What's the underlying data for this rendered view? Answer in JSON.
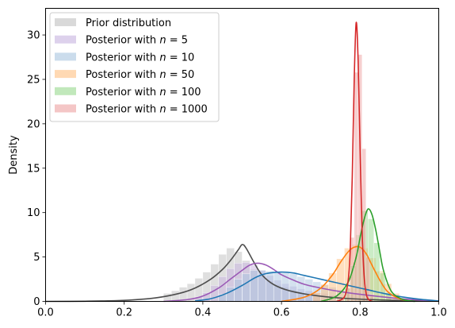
{
  "chart_data": {
    "type": "area",
    "title": "",
    "xlabel": "",
    "ylabel": "Density",
    "xlim": [
      0.0,
      1.0
    ],
    "ylim": [
      0,
      33
    ],
    "x_ticks": [
      "0.0",
      "0.2",
      "0.4",
      "0.6",
      "0.8",
      "1.0"
    ],
    "y_ticks": [
      "0",
      "5",
      "10",
      "15",
      "20",
      "25",
      "30"
    ],
    "legend_position": "upper-left",
    "grid": false,
    "series": [
      {
        "name": "Prior distribution",
        "line_color": "#4d4d4d",
        "hist_color": "#bfbfbf",
        "curve": {
          "x": [
            0.0,
            0.1,
            0.2,
            0.28,
            0.34,
            0.38,
            0.42,
            0.45,
            0.47,
            0.49,
            0.5,
            0.51,
            0.53,
            0.55,
            0.58,
            0.62,
            0.68,
            0.75,
            0.85,
            0.95,
            1.0
          ],
          "y": [
            0.0,
            0.02,
            0.12,
            0.4,
            0.9,
            1.5,
            2.5,
            3.6,
            4.6,
            5.8,
            6.4,
            6.0,
            4.4,
            3.0,
            1.9,
            1.2,
            0.7,
            0.38,
            0.16,
            0.06,
            0.02
          ]
        },
        "histogram": {
          "bin_start": 0.3,
          "bin_width": 0.02,
          "heights": [
            0.9,
            1.2,
            1.6,
            2.0,
            2.6,
            3.3,
            4.2,
            5.3,
            6.0,
            5.6,
            4.6,
            3.6,
            2.9,
            2.3,
            1.9,
            1.6,
            1.3,
            1.0,
            0.8,
            0.6
          ]
        }
      },
      {
        "name": "Posterior with n = 5",
        "name_parts": [
          "Posterior with ",
          "n",
          " = 5"
        ],
        "line_color": "#9b59b6",
        "hist_color": "#c7b3e0",
        "curve": {
          "x": [
            0.3,
            0.36,
            0.4,
            0.44,
            0.47,
            0.5,
            0.52,
            0.54,
            0.56,
            0.58,
            0.6,
            0.63,
            0.66,
            0.7,
            0.75,
            0.8,
            0.88,
            0.95,
            1.0
          ],
          "y": [
            0.0,
            0.2,
            0.6,
            1.5,
            2.5,
            3.5,
            4.1,
            4.3,
            4.1,
            3.6,
            3.0,
            2.4,
            1.9,
            1.5,
            1.1,
            0.8,
            0.4,
            0.15,
            0.05
          ]
        },
        "histogram": {
          "bin_start": 0.38,
          "bin_width": 0.02,
          "heights": [
            0.5,
            1.0,
            1.8,
            2.8,
            3.7,
            4.3,
            4.4,
            4.1,
            3.5,
            2.9,
            2.4,
            2.0,
            1.7,
            1.4,
            1.2,
            1.0,
            0.9,
            0.7,
            0.5,
            0.4,
            0.3
          ]
        }
      },
      {
        "name": "Posterior with n = 10",
        "name_parts": [
          "Posterior with ",
          "n",
          " = 10"
        ],
        "line_color": "#1f77b4",
        "hist_color": "#a9c4e0",
        "curve": {
          "x": [
            0.38,
            0.42,
            0.46,
            0.5,
            0.53,
            0.55,
            0.57,
            0.6,
            0.63,
            0.66,
            0.7,
            0.74,
            0.78,
            0.82,
            0.86,
            0.9,
            0.95,
            1.0
          ],
          "y": [
            0.05,
            0.3,
            0.9,
            1.8,
            2.6,
            3.0,
            3.2,
            3.3,
            3.2,
            2.9,
            2.5,
            2.1,
            1.7,
            1.3,
            0.9,
            0.55,
            0.25,
            0.05
          ]
        },
        "histogram": {
          "bin_start": 0.44,
          "bin_width": 0.02,
          "heights": [
            0.8,
            1.6,
            2.5,
            3.1,
            3.5,
            3.5,
            3.4,
            3.3,
            3.2,
            3.1,
            2.8,
            2.5,
            2.2,
            1.9,
            1.6,
            1.3,
            1.0,
            0.8,
            0.6,
            0.4
          ]
        }
      },
      {
        "name": "Posterior with n = 50",
        "name_parts": [
          "Posterior with ",
          "n",
          " = 50"
        ],
        "line_color": "#ff7f0e",
        "hist_color": "#ffc080",
        "curve": {
          "x": [
            0.6,
            0.66,
            0.7,
            0.73,
            0.75,
            0.77,
            0.785,
            0.8,
            0.815,
            0.83,
            0.85,
            0.87,
            0.9,
            0.93
          ],
          "y": [
            0.0,
            0.5,
            1.5,
            3.0,
            4.4,
            5.6,
            6.1,
            6.1,
            5.4,
            4.1,
            2.4,
            1.1,
            0.3,
            0.0
          ]
        },
        "histogram": {
          "bin_start": 0.68,
          "bin_width": 0.02,
          "heights": [
            1.0,
            1.9,
            3.2,
            4.8,
            6.0,
            6.4,
            6.0,
            4.9,
            3.4,
            2.0,
            0.9,
            0.3
          ]
        }
      },
      {
        "name": "Posterior with n = 100",
        "name_parts": [
          "Posterior with ",
          "n",
          " = 100"
        ],
        "line_color": "#2ca02c",
        "hist_color": "#98d98e",
        "curve": {
          "x": [
            0.7,
            0.74,
            0.77,
            0.79,
            0.8,
            0.81,
            0.82,
            0.83,
            0.84,
            0.85,
            0.86,
            0.88,
            0.91,
            0.94
          ],
          "y": [
            0.0,
            0.6,
            2.2,
            5.0,
            7.2,
            9.2,
            10.4,
            9.8,
            8.0,
            5.6,
            3.4,
            1.1,
            0.2,
            0.0
          ]
        },
        "histogram": {
          "bin_start": 0.76,
          "bin_width": 0.015,
          "heights": [
            1.5,
            4.0,
            7.5,
            10.2,
            9.3,
            6.6,
            3.2,
            1.0
          ]
        }
      },
      {
        "name": "Posterior with n = 1000",
        "name_parts": [
          "Posterior with ",
          "n",
          " = 1000"
        ],
        "line_color": "#d62728",
        "hist_color": "#eda0a0",
        "curve": {
          "x": [
            0.74,
            0.76,
            0.77,
            0.775,
            0.78,
            0.785,
            0.79,
            0.795,
            0.8,
            0.805,
            0.81,
            0.815,
            0.82,
            0.83
          ],
          "y": [
            0.0,
            0.5,
            2.5,
            6.0,
            14.0,
            25.0,
            31.4,
            27.0,
            17.0,
            8.0,
            3.0,
            1.0,
            0.3,
            0.0
          ]
        },
        "histogram": {
          "bin_start": 0.765,
          "bin_width": 0.01,
          "heights": [
            1.5,
            7.2,
            25.8,
            27.8,
            17.2,
            5.0,
            0.8
          ]
        }
      }
    ]
  }
}
